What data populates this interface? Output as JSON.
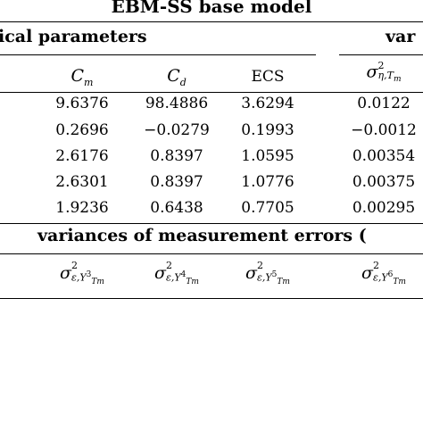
{
  "table": {
    "title": "EBM-SS base model",
    "physical_header": "ical parameters",
    "variances_header_partial": "var",
    "columns": {
      "cm": {
        "base": "C",
        "sub": "m"
      },
      "cd": {
        "base": "C",
        "sub": "d"
      },
      "ecs": "ECS",
      "sigma_eta": {
        "base": "σ",
        "sup": "2",
        "sub": "η,T",
        "subsub": "m"
      }
    },
    "rows": [
      [
        "9.6376",
        "98.4886",
        "3.6294",
        "0.0122"
      ],
      [
        "0.2696",
        "−0.0279",
        "0.1993",
        "−0.0012"
      ],
      [
        "2.6176",
        "0.8397",
        "1.0595",
        "0.00354"
      ],
      [
        "2.6301",
        "0.8397",
        "1.0776",
        "0.00375"
      ],
      [
        "1.9236",
        "0.6438",
        "0.7705",
        "0.00295"
      ]
    ],
    "measurement_header": "variances of measurement errors (",
    "measurement_columns": [
      {
        "base": "σ",
        "sup": "2",
        "sub": "ε,Y",
        "ysup": "3",
        "ysub": "T",
        "ysubsub": "m"
      },
      {
        "base": "σ",
        "sup": "2",
        "sub": "ε,Y",
        "ysup": "4",
        "ysub": "T",
        "ysubsub": "m"
      },
      {
        "base": "σ",
        "sup": "2",
        "sub": "ε,Y",
        "ysup": "5",
        "ysub": "T",
        "ysubsub": "m"
      },
      {
        "base": "σ",
        "sup": "2",
        "sub": "ε,Y",
        "ysup": "6",
        "ysub": "T",
        "ysubsub": "m"
      }
    ]
  }
}
